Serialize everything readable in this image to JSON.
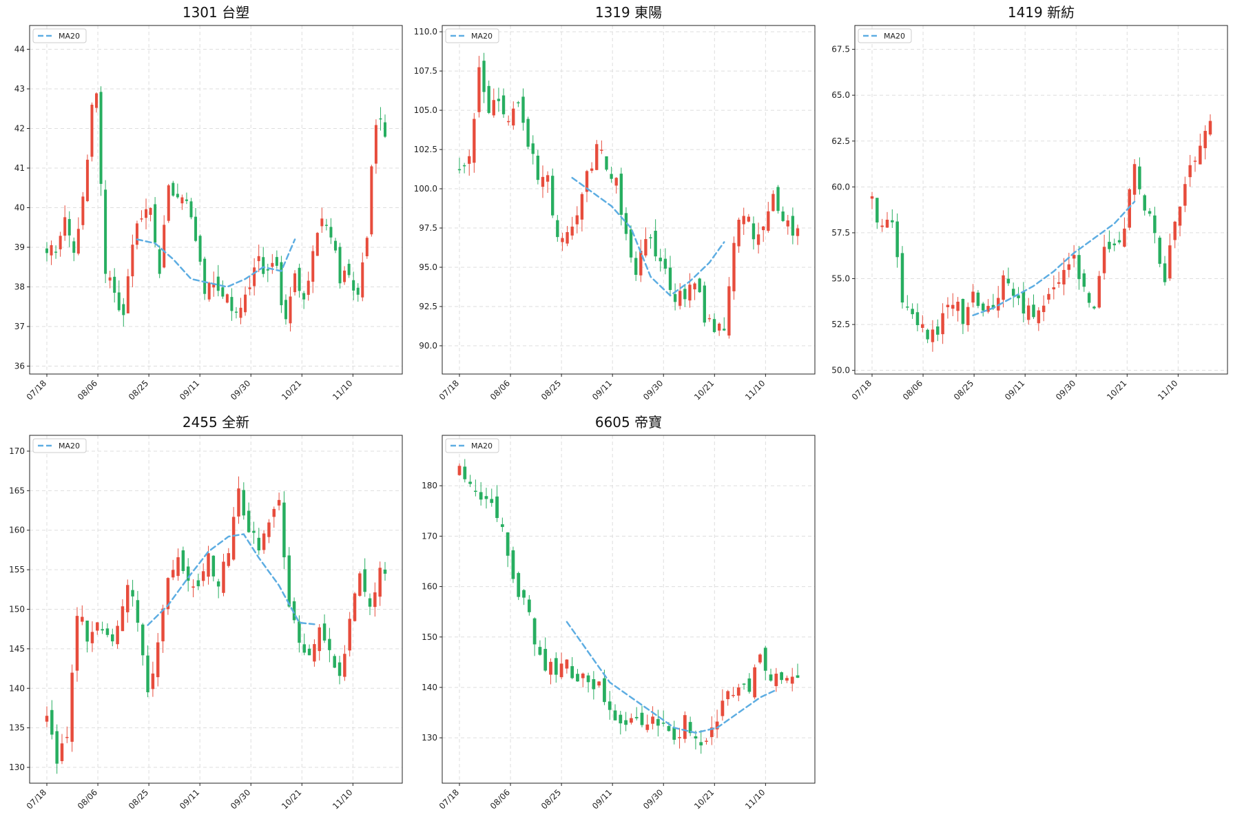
{
  "figure": {
    "background": "#ffffff"
  },
  "colors": {
    "up": "#e74c3c",
    "down": "#27ae60",
    "ma": "#5dade2",
    "grid": "#dddddd"
  },
  "chart_data": [
    {
      "type": "candlestick",
      "title": "1301 台塑",
      "legend": {
        "entries": [
          "MA20"
        ],
        "placement": "top-left"
      },
      "grid": true,
      "xticks": [
        "07/18",
        "08/06",
        "08/25",
        "09/11",
        "09/30",
        "10/21",
        "11/10"
      ],
      "ylim": [
        35.8,
        44.6
      ],
      "yticks": [
        36,
        37,
        38,
        39,
        40,
        41,
        42,
        43,
        44
      ],
      "close_path": [
        [
          0,
          38.8
        ],
        [
          2,
          39.0
        ],
        [
          4,
          39.6
        ],
        [
          6,
          38.9
        ],
        [
          8,
          40.2
        ],
        [
          10,
          42.5
        ],
        [
          11,
          43.1
        ],
        [
          13,
          38.4
        ],
        [
          15,
          38.0
        ],
        [
          17,
          37.2
        ],
        [
          19,
          39.2
        ],
        [
          21,
          39.6
        ],
        [
          23,
          40.0
        ],
        [
          25,
          38.5
        ],
        [
          27,
          40.6
        ],
        [
          29,
          40.4
        ],
        [
          31,
          40.2
        ],
        [
          33,
          39.1
        ],
        [
          35,
          38.0
        ],
        [
          37,
          38.2
        ],
        [
          39,
          37.9
        ],
        [
          41,
          37.6
        ],
        [
          43,
          37.4
        ],
        [
          45,
          38.1
        ],
        [
          47,
          38.6
        ],
        [
          49,
          38.4
        ],
        [
          51,
          38.5
        ],
        [
          53,
          37.0
        ],
        [
          55,
          38.2
        ],
        [
          57,
          37.5
        ],
        [
          59,
          39.0
        ],
        [
          61,
          39.7
        ],
        [
          63,
          39.4
        ],
        [
          65,
          38.1
        ],
        [
          67,
          38.4
        ],
        [
          69,
          37.6
        ],
        [
          71,
          39.4
        ],
        [
          73,
          42.3
        ],
        [
          75,
          42.0
        ]
      ],
      "ma_path": [
        [
          20,
          39.2
        ],
        [
          24,
          39.1
        ],
        [
          28,
          38.7
        ],
        [
          32,
          38.2
        ],
        [
          36,
          38.1
        ],
        [
          40,
          38.0
        ],
        [
          44,
          38.2
        ],
        [
          48,
          38.5
        ],
        [
          52,
          38.4
        ],
        [
          55,
          39.2
        ]
      ],
      "n_points": 76
    },
    {
      "type": "candlestick",
      "title": "1319 東陽",
      "legend": {
        "entries": [
          "MA20"
        ],
        "placement": "top-left"
      },
      "grid": true,
      "xticks": [
        "07/18",
        "08/06",
        "08/25",
        "09/11",
        "09/30",
        "10/21",
        "11/10"
      ],
      "ylim": [
        88.2,
        110.4
      ],
      "yticks": [
        90.0,
        92.5,
        95.0,
        97.5,
        100.0,
        102.5,
        105.0,
        107.5,
        110.0
      ],
      "close_path": [
        [
          0,
          101.0
        ],
        [
          2,
          102.0
        ],
        [
          4,
          107.5
        ],
        [
          6,
          104.5
        ],
        [
          8,
          106.0
        ],
        [
          10,
          104.0
        ],
        [
          12,
          106.0
        ],
        [
          14,
          103.0
        ],
        [
          16,
          100.5
        ],
        [
          18,
          100.5
        ],
        [
          20,
          96.5
        ],
        [
          22,
          97.0
        ],
        [
          24,
          98.0
        ],
        [
          26,
          101.0
        ],
        [
          28,
          102.5
        ],
        [
          30,
          101.5
        ],
        [
          32,
          100.5
        ],
        [
          34,
          97.0
        ],
        [
          36,
          94.5
        ],
        [
          38,
          97.0
        ],
        [
          40,
          96.0
        ],
        [
          42,
          94.5
        ],
        [
          44,
          92.5
        ],
        [
          46,
          93.5
        ],
        [
          48,
          94.0
        ],
        [
          50,
          92.0
        ],
        [
          52,
          91.0
        ],
        [
          54,
          91.5
        ],
        [
          56,
          96.5
        ],
        [
          58,
          98.5
        ],
        [
          60,
          97.0
        ],
        [
          62,
          97.5
        ],
        [
          64,
          99.5
        ],
        [
          66,
          98.0
        ],
        [
          68,
          97.0
        ]
      ],
      "ma_path": [
        [
          23,
          100.7
        ],
        [
          27,
          99.8
        ],
        [
          31,
          98.9
        ],
        [
          35,
          97.5
        ],
        [
          39,
          94.4
        ],
        [
          43,
          93.2
        ],
        [
          47,
          94.1
        ],
        [
          51,
          95.3
        ],
        [
          54,
          96.6
        ]
      ],
      "n_points": 70
    },
    {
      "type": "candlestick",
      "title": "1419 新紡",
      "legend": {
        "entries": [
          "MA20"
        ],
        "placement": "top-left"
      },
      "grid": true,
      "xticks": [
        "07/18",
        "08/06",
        "08/25",
        "09/11",
        "09/30",
        "10/21",
        "11/10"
      ],
      "ylim": [
        49.8,
        68.8
      ],
      "yticks": [
        50.0,
        52.5,
        55.0,
        57.5,
        60.0,
        62.5,
        65.0,
        67.5
      ],
      "close_path": [
        [
          0,
          59.3
        ],
        [
          2,
          57.5
        ],
        [
          4,
          58.0
        ],
        [
          6,
          54.0
        ],
        [
          8,
          53.0
        ],
        [
          10,
          52.2
        ],
        [
          12,
          51.8
        ],
        [
          14,
          52.8
        ],
        [
          16,
          54.0
        ],
        [
          18,
          53.0
        ],
        [
          20,
          54.0
        ],
        [
          22,
          53.2
        ],
        [
          24,
          53.5
        ],
        [
          26,
          55.0
        ],
        [
          28,
          54.0
        ],
        [
          30,
          53.5
        ],
        [
          32,
          52.8
        ],
        [
          34,
          53.5
        ],
        [
          36,
          54.5
        ],
        [
          38,
          55.5
        ],
        [
          40,
          56.0
        ],
        [
          42,
          54.5
        ],
        [
          44,
          53.0
        ],
        [
          46,
          57.0
        ],
        [
          48,
          56.5
        ],
        [
          50,
          58.0
        ],
        [
          52,
          61.0
        ],
        [
          54,
          59.0
        ],
        [
          56,
          57.5
        ],
        [
          58,
          55.0
        ],
        [
          60,
          58.5
        ],
        [
          62,
          60.0
        ],
        [
          64,
          61.5
        ],
        [
          66,
          63.5
        ]
      ],
      "ma_path": [
        [
          20,
          53.0
        ],
        [
          24,
          53.4
        ],
        [
          28,
          54.0
        ],
        [
          32,
          54.6
        ],
        [
          36,
          55.4
        ],
        [
          40,
          56.4
        ],
        [
          44,
          57.2
        ],
        [
          48,
          58.0
        ],
        [
          52,
          59.2
        ]
      ],
      "n_points": 68
    },
    {
      "type": "candlestick",
      "title": "2455 全新",
      "legend": {
        "entries": [
          "MA20"
        ],
        "placement": "top-left"
      },
      "grid": true,
      "xticks": [
        "07/18",
        "08/06",
        "08/25",
        "09/11",
        "09/30",
        "10/21",
        "11/10"
      ],
      "ylim": [
        128.0,
        172.0
      ],
      "yticks": [
        130,
        135,
        140,
        145,
        150,
        155,
        160,
        165,
        170
      ],
      "close_path": [
        [
          0,
          136.0
        ],
        [
          2,
          131.0
        ],
        [
          4,
          134.0
        ],
        [
          6,
          149.0
        ],
        [
          8,
          147.0
        ],
        [
          10,
          147.5
        ],
        [
          12,
          146.0
        ],
        [
          14,
          148.0
        ],
        [
          16,
          153.0
        ],
        [
          18,
          149.0
        ],
        [
          20,
          139.0
        ],
        [
          22,
          146.0
        ],
        [
          24,
          153.0
        ],
        [
          26,
          156.0
        ],
        [
          28,
          154.0
        ],
        [
          30,
          152.0
        ],
        [
          32,
          157.0
        ],
        [
          34,
          153.0
        ],
        [
          36,
          157.0
        ],
        [
          38,
          165.0
        ],
        [
          40,
          160.0
        ],
        [
          42,
          158.0
        ],
        [
          44,
          162.0
        ],
        [
          46,
          164.0
        ],
        [
          48,
          151.0
        ],
        [
          50,
          146.0
        ],
        [
          52,
          145.0
        ],
        [
          54,
          148.0
        ],
        [
          56,
          145.0
        ],
        [
          58,
          142.0
        ],
        [
          60,
          148.0
        ],
        [
          62,
          154.0
        ],
        [
          64,
          151.0
        ],
        [
          66,
          155.0
        ]
      ],
      "ma_path": [
        [
          20,
          148.0
        ],
        [
          24,
          150.5
        ],
        [
          28,
          154.0
        ],
        [
          32,
          157.3
        ],
        [
          36,
          159.2
        ],
        [
          39,
          159.5
        ],
        [
          42,
          156.5
        ],
        [
          46,
          153.0
        ],
        [
          50,
          148.3
        ],
        [
          53,
          148.1
        ]
      ],
      "n_points": 68
    },
    {
      "type": "candlestick",
      "title": "6605 帝寶",
      "legend": {
        "entries": [
          "MA20"
        ],
        "placement": "top-left"
      },
      "grid": true,
      "xticks": [
        "07/18",
        "08/06",
        "08/25",
        "09/11",
        "09/30",
        "10/21",
        "11/10"
      ],
      "ylim": [
        121.0,
        190.0
      ],
      "yticks": [
        130,
        140,
        150,
        160,
        170,
        180
      ],
      "close_path": [
        [
          0,
          183.0
        ],
        [
          2,
          180.0
        ],
        [
          4,
          178.0
        ],
        [
          6,
          175.0
        ],
        [
          8,
          172.0
        ],
        [
          10,
          160.0
        ],
        [
          12,
          157.0
        ],
        [
          14,
          150.0
        ],
        [
          16,
          145.0
        ],
        [
          18,
          143.0
        ],
        [
          20,
          145.0
        ],
        [
          22,
          142.0
        ],
        [
          24,
          141.0
        ],
        [
          26,
          140.0
        ],
        [
          28,
          137.0
        ],
        [
          30,
          132.0
        ],
        [
          32,
          134.0
        ],
        [
          34,
          133.0
        ],
        [
          36,
          134.0
        ],
        [
          38,
          132.0
        ],
        [
          40,
          128.0
        ],
        [
          42,
          133.0
        ],
        [
          44,
          131.0
        ],
        [
          46,
          129.0
        ],
        [
          48,
          133.0
        ],
        [
          50,
          139.0
        ],
        [
          52,
          140.0
        ],
        [
          54,
          139.0
        ],
        [
          56,
          147.0
        ],
        [
          58,
          142.0
        ],
        [
          60,
          141.0
        ],
        [
          62,
          141.0
        ]
      ],
      "ma_path": [
        [
          20,
          153.0
        ],
        [
          24,
          147.0
        ],
        [
          28,
          141.0
        ],
        [
          32,
          138.0
        ],
        [
          36,
          135.0
        ],
        [
          40,
          132.0
        ],
        [
          44,
          131.0
        ],
        [
          48,
          132.0
        ],
        [
          52,
          135.0
        ],
        [
          56,
          138.0
        ],
        [
          59,
          139.5
        ]
      ],
      "n_points": 64
    }
  ]
}
